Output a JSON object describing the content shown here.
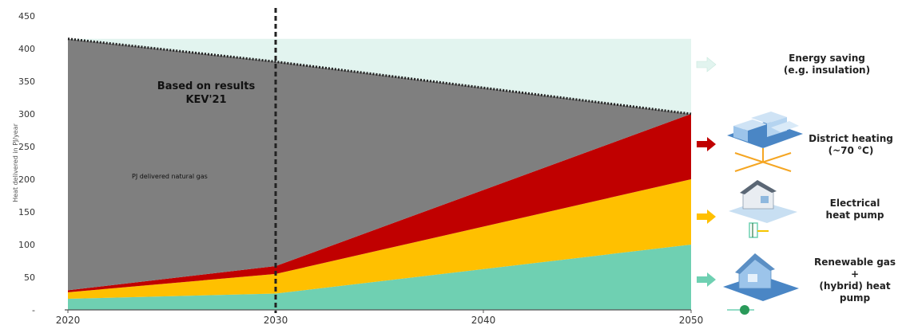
{
  "chart_data": {
    "type": "area",
    "ylabel": "Heat delivered in PJ/year",
    "x": [
      2020,
      2030,
      2050
    ],
    "x_ticks": [
      "2020",
      "2030",
      "2040",
      "2050"
    ],
    "y_ticks": [
      "-",
      "50",
      "100",
      "150",
      "200",
      "250",
      "300",
      "350",
      "400",
      "450"
    ],
    "xlim": [
      2020,
      2050
    ],
    "ylim": [
      0,
      450
    ],
    "stacked": true,
    "series": [
      {
        "name": "Renewable gas + (hybrid) heat pump",
        "color": "#6fd0b2",
        "values": [
          17,
          25,
          100
        ]
      },
      {
        "name": "Electrical heat pump",
        "color": "#ffc000",
        "values": [
          10,
          30,
          100
        ]
      },
      {
        "name": "District heating (~70 °C)",
        "color": "#c00000",
        "values": [
          3,
          12,
          100
        ]
      },
      {
        "name": "PJ delivered natural gas",
        "color": "#7f7f7f",
        "values": [
          385,
          313,
          0
        ]
      },
      {
        "name": "Energy saving (e.g. insulation)",
        "color": "#e2f4ef",
        "values": [
          0,
          35,
          115
        ]
      }
    ],
    "total_demand": [
      415,
      380,
      300
    ],
    "reference_year": 2030,
    "annotation": "Based on results\nKEV'21",
    "area_label": "PJ delivered natural gas",
    "grid": false,
    "legend_position": "right"
  },
  "legend": [
    {
      "label": "Energy saving\n(e.g. insulation)",
      "color": "#e2f4ef",
      "icon": "none"
    },
    {
      "label": "District heating\n(~70 °C)",
      "color": "#c00000",
      "icon": "district-heating-houses-icon"
    },
    {
      "label": "Electrical\nheat pump",
      "color": "#ffc000",
      "icon": "electric-heat-pump-house-icon"
    },
    {
      "label": "Renewable gas\n+\n(hybrid) heat\npump",
      "color": "#6fd0b2",
      "icon": "hybrid-heat-pump-house-icon"
    }
  ]
}
